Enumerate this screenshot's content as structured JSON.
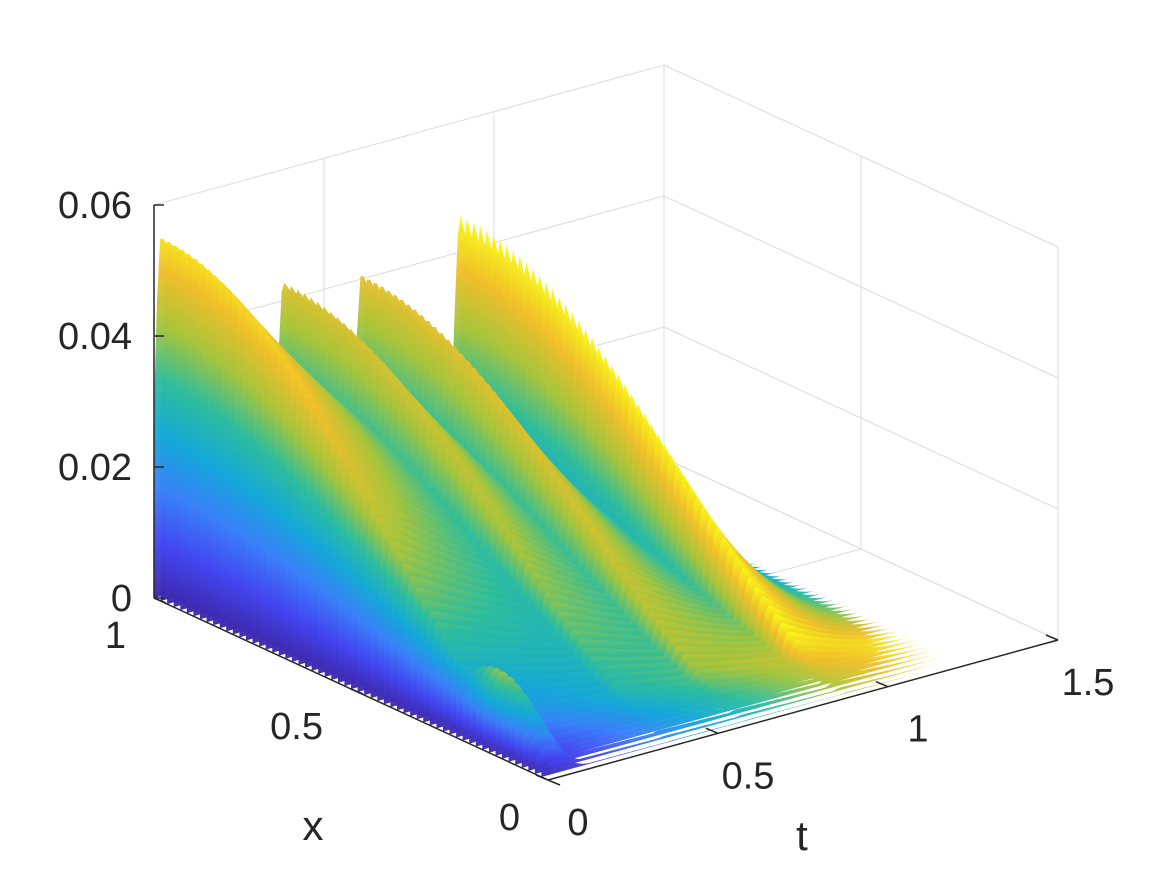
{
  "chart_data": {
    "type": "surface",
    "title": "",
    "xlabel": "t",
    "ylabel": "x",
    "zlabel": "",
    "t_range": [
      0,
      1.5
    ],
    "x_range": [
      0,
      1
    ],
    "z_range": [
      0,
      0.06
    ],
    "t_ticks": [
      "0",
      "0.5",
      "1",
      "1.5"
    ],
    "x_ticks": [
      "0",
      "0.5",
      "1"
    ],
    "z_ticks": [
      "0",
      "0.02",
      "0.04",
      "0.06"
    ],
    "t_tick_values": [
      0,
      0.5,
      1,
      1.5
    ],
    "x_tick_values": [
      0,
      0.5,
      1
    ],
    "z_tick_values": [
      0,
      0.02,
      0.04,
      0.06
    ],
    "grid": true,
    "colormap": "parula",
    "colormap_stops": [
      "#3e26a8",
      "#4346f0",
      "#3a80f9",
      "#14a8d8",
      "#2ebd9d",
      "#a6c43b",
      "#f0bf2a",
      "#f9fb15"
    ],
    "surface_profile": {
      "description_values": "u(t, x) along x = 1 edge: sharp peaks near t = 0, 0.38, 0.61, 0.90 decaying toward t = 1.25",
      "peaks": [
        {
          "t": 0.02,
          "x": 1.0,
          "u": 0.055
        },
        {
          "t": 0.38,
          "x": 1.0,
          "u": 0.043
        },
        {
          "t": 0.61,
          "x": 1.0,
          "u": 0.041
        },
        {
          "t": 0.9,
          "x": 1.0,
          "u": 0.046
        }
      ],
      "ripple_peak": {
        "t": 0.04,
        "x": 0.8,
        "u": 0.014
      },
      "t_end": 1.25
    }
  }
}
